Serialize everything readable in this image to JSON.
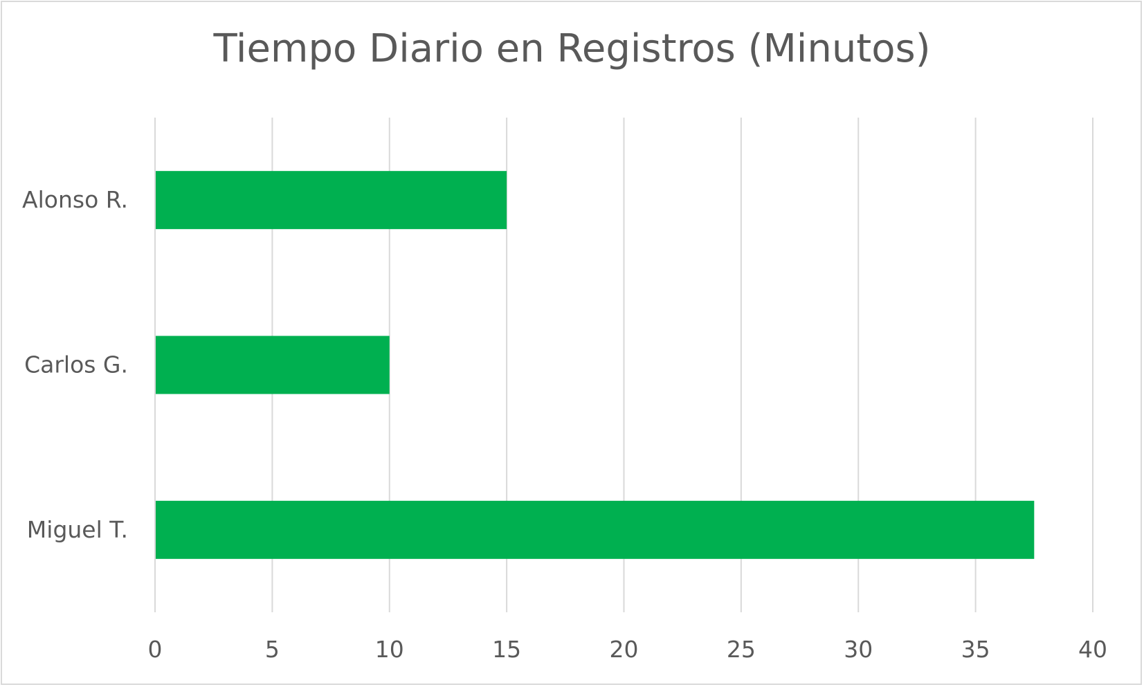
{
  "chart_data": {
    "type": "bar",
    "orientation": "horizontal",
    "title": "Tiempo Diario en Registros (Minutos)",
    "categories": [
      "Alonso R.",
      "Carlos G.",
      "Miguel T."
    ],
    "values": [
      15,
      10,
      37.5
    ],
    "xlim": [
      0,
      40
    ],
    "xticks": [
      0,
      5,
      10,
      15,
      20,
      25,
      30,
      35,
      40
    ],
    "xlabel": "",
    "ylabel": "",
    "grid": "vertical",
    "legend": "none",
    "colors": {
      "bar": "#00b050",
      "grid": "#d9d9d9",
      "text": "#595959"
    }
  }
}
